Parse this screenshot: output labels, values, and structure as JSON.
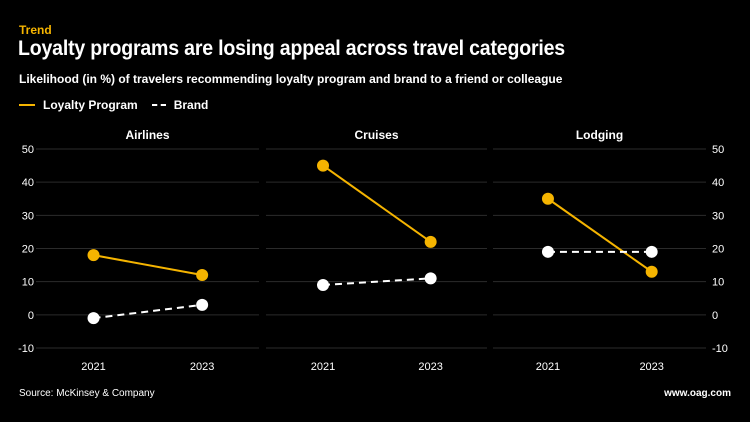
{
  "header": {
    "eyebrow": "Trend",
    "title": "Loyalty programs are losing appeal across travel categories",
    "subtitle": "Likelihood (in %) of travelers recommending loyalty program and brand to a friend or colleague"
  },
  "legend": {
    "loyalty_label": "Loyalty Program",
    "brand_label": "Brand"
  },
  "footer": {
    "source": "Source: McKinsey & Company",
    "url": "www.oag.com"
  },
  "colors": {
    "loyalty": "#f5b400",
    "brand": "#ffffff",
    "grid": "#2b2b2b",
    "background": "#000000"
  },
  "chart_data": [
    {
      "type": "line",
      "title": "Airlines",
      "categories": [
        "2021",
        "2023"
      ],
      "ylim": [
        -10,
        50
      ],
      "yticks": [
        -10,
        0,
        10,
        20,
        30,
        40,
        50
      ],
      "series": [
        {
          "name": "Loyalty Program",
          "values": [
            18,
            12
          ]
        },
        {
          "name": "Brand",
          "values": [
            -1,
            3
          ]
        }
      ]
    },
    {
      "type": "line",
      "title": "Cruises",
      "categories": [
        "2021",
        "2023"
      ],
      "ylim": [
        -10,
        50
      ],
      "yticks": [
        -10,
        0,
        10,
        20,
        30,
        40,
        50
      ],
      "series": [
        {
          "name": "Loyalty Program",
          "values": [
            45,
            22
          ]
        },
        {
          "name": "Brand",
          "values": [
            9,
            11
          ]
        }
      ]
    },
    {
      "type": "line",
      "title": "Lodging",
      "categories": [
        "2021",
        "2023"
      ],
      "ylim": [
        -10,
        50
      ],
      "yticks": [
        -10,
        0,
        10,
        20,
        30,
        40,
        50
      ],
      "series": [
        {
          "name": "Loyalty Program",
          "values": [
            35,
            13
          ]
        },
        {
          "name": "Brand",
          "values": [
            19,
            19
          ]
        }
      ]
    }
  ]
}
